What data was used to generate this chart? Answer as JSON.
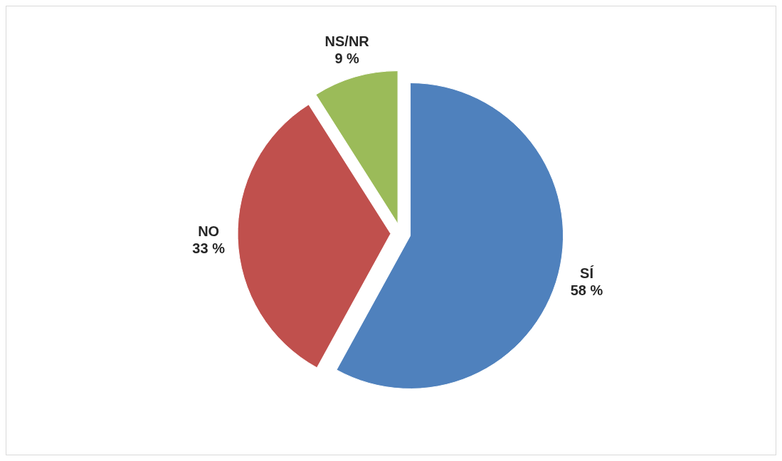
{
  "chart_data": {
    "type": "pie",
    "categories": [
      "SÍ",
      "NO",
      "NS/NR"
    ],
    "values": [
      58,
      33,
      9
    ],
    "colors": [
      "#4f81bd",
      "#c0504d",
      "#9bbb59"
    ],
    "value_labels": [
      "58 %",
      "33 %",
      "9 %"
    ],
    "legend": false
  }
}
